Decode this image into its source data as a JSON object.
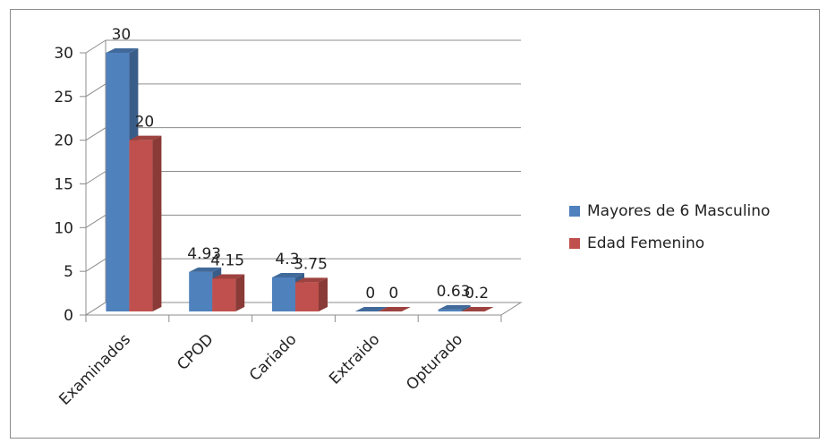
{
  "chart_data": {
    "type": "bar",
    "categories": [
      "Examinados",
      "CPOD",
      "Cariado",
      "Extraido",
      "Opturado"
    ],
    "series": [
      {
        "name": "Mayores de 6 Masculino",
        "values": [
          30,
          4.93,
          4.3,
          0,
          0.63
        ],
        "labels": [
          "30",
          "4.93",
          "4.3",
          "0",
          "0.63"
        ],
        "color": "#4f81bd"
      },
      {
        "name": "Edad Femenino",
        "values": [
          20,
          4.15,
          3.75,
          0,
          0.2
        ],
        "labels": [
          "20",
          "4.15",
          "3.75",
          "0",
          "0.2"
        ],
        "color": "#c0504d"
      }
    ],
    "ylim": [
      0,
      30
    ],
    "yticks": [
      0,
      5,
      10,
      15,
      20,
      25,
      30
    ],
    "grid": true,
    "legend": "right",
    "style": "3d-clustered-column"
  }
}
